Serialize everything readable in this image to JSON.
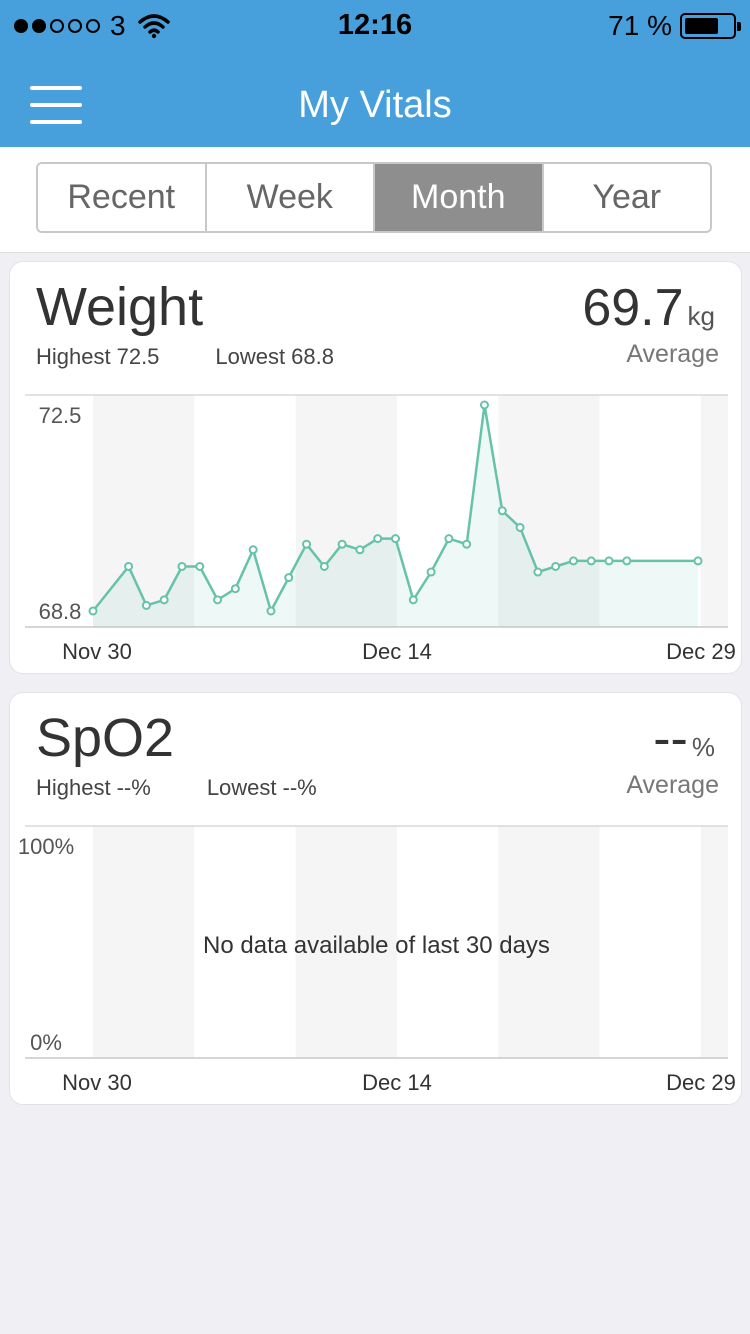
{
  "status": {
    "carrier": "3",
    "time": "12:16",
    "battery": "71 %",
    "battery_level": 0.71,
    "signal_bars_filled": 2,
    "signal_bars_total": 5
  },
  "nav": {
    "title": "My Vitals",
    "menu_icon": "hamburger-menu-icon"
  },
  "segments": [
    {
      "label": "Recent",
      "active": false
    },
    {
      "label": "Week",
      "active": false
    },
    {
      "label": "Month",
      "active": true
    },
    {
      "label": "Year",
      "active": false
    }
  ],
  "weight": {
    "title": "Weight",
    "highest_label": "Highest",
    "highest_value": "72.5",
    "lowest_label": "Lowest",
    "lowest_value": "68.8",
    "average_value": "69.7",
    "average_unit": "kg",
    "average_label": "Average"
  },
  "spo2": {
    "title": "SpO2",
    "highest_label": "Highest",
    "highest_value": "--%",
    "lowest_label": "Lowest",
    "lowest_value": "--%",
    "average_value": "--",
    "average_unit": "%",
    "average_label": "Average",
    "no_data": "No data available of last 30 days"
  },
  "chart_data": [
    {
      "type": "line",
      "ylim": [
        68.8,
        72.5
      ],
      "y_ticks": [
        "72.5",
        "68.8"
      ],
      "x_ticks": [
        "Nov 30",
        "Dec 14",
        "Dec 29"
      ],
      "grid": true,
      "series": [
        {
          "x": [
            0,
            1,
            1.5,
            2,
            2.5,
            3,
            3.5,
            4,
            4.5,
            5,
            5.5,
            6,
            6.5,
            7,
            7.5,
            8,
            8.5,
            9,
            9.5,
            10,
            10.5,
            11,
            11.5,
            12,
            12.5,
            13,
            13.5,
            14,
            14.5,
            15,
            17
          ],
          "values": [
            68.8,
            69.6,
            68.9,
            69.0,
            69.6,
            69.6,
            69.0,
            69.2,
            69.9,
            68.8,
            69.4,
            70.0,
            69.6,
            70.0,
            69.9,
            70.1,
            70.1,
            69.0,
            69.5,
            70.1,
            70.0,
            72.5,
            70.6,
            70.3,
            69.5,
            69.6,
            69.7,
            69.7,
            69.7,
            69.7,
            69.7
          ]
        }
      ]
    },
    {
      "type": "line",
      "ylim": [
        0,
        100
      ],
      "y_ticks": [
        "100%",
        "0%"
      ],
      "x_ticks": [
        "Nov 30",
        "Dec 14",
        "Dec 29"
      ],
      "grid": true,
      "series": []
    }
  ]
}
